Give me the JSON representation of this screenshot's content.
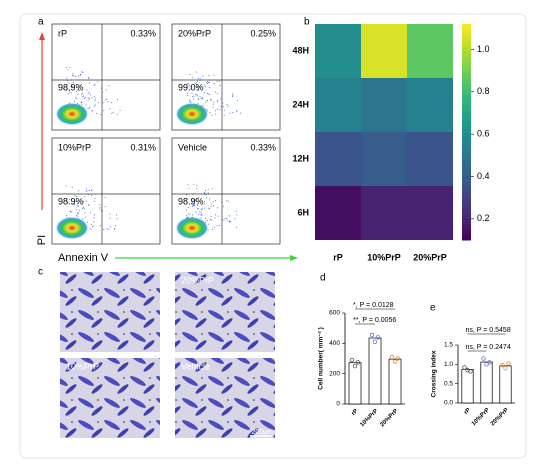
{
  "panel_labels": [
    "a",
    "b",
    "c",
    "d",
    "e"
  ],
  "flow": {
    "x_label": "Annexin V",
    "y_label": "PI",
    "plots": [
      {
        "name": "rP",
        "upper_right": "0.33%",
        "lower_left": "98.9%"
      },
      {
        "name": "20%PrP",
        "upper_right": "0.25%",
        "lower_left": "99.0%"
      },
      {
        "name": "10%PrP",
        "upper_right": "0.31%",
        "lower_left": "98.9%"
      },
      {
        "name": "Vehicle",
        "upper_right": "0.33%",
        "lower_left": "98.9%"
      }
    ]
  },
  "micro": {
    "labels": [
      "20%PrP",
      "10%PrP",
      "Vehicle"
    ],
    "scale_bar": "200μm"
  },
  "chart_data": [
    {
      "type": "heatmap",
      "rows": [
        "48H",
        "24H",
        "12H",
        "6H"
      ],
      "columns": [
        "rP",
        "10%PrP",
        "20%PrP"
      ],
      "values": [
        [
          0.6,
          1.06,
          0.86
        ],
        [
          0.55,
          0.5,
          0.55
        ],
        [
          0.36,
          0.4,
          0.36
        ],
        [
          0.14,
          0.2,
          0.2
        ]
      ],
      "zlim": [
        0.1,
        1.12
      ],
      "zticks": [
        0.2,
        0.4,
        0.6,
        0.8,
        {
          "value": 1,
          "label": "1.0"
        }
      ],
      "colormap": "viridis"
    },
    {
      "type": "bar",
      "y_label": "Cell number( mm⁻² )",
      "categories": [
        "rP",
        "10%PrP",
        "20%PrP"
      ],
      "values": [
        272,
        435,
        296
      ],
      "points": [
        [
          290,
          250,
          275
        ],
        [
          455,
          410,
          440
        ],
        [
          310,
          280,
          300
        ]
      ],
      "point_colors": [
        "#555555",
        "#6a6fd8",
        "#e08a3c"
      ],
      "ylim": [
        0,
        600
      ],
      "yticks": [
        0,
        200,
        400,
        600
      ],
      "annotations": [
        "*, P = 0.0128",
        "**, P = 0.0056"
      ]
    },
    {
      "type": "bar",
      "y_label": "Crossing index",
      "categories": [
        "rP",
        "10%PrP",
        "20%PrP"
      ],
      "values": [
        0.87,
        1.06,
        0.96
      ],
      "points": [
        [
          0.92,
          0.85,
          0.82
        ],
        [
          1.15,
          1.0,
          1.05
        ],
        [
          0.98,
          0.9,
          1.02
        ]
      ],
      "point_colors": [
        "#555555",
        "#6a6fd8",
        "#e08a3c"
      ],
      "ylim": [
        0,
        1.5
      ],
      "yticks": [
        {
          "value": 0,
          "label": "0.0"
        },
        0.5,
        {
          "value": 1,
          "label": "1.0"
        },
        1.5
      ],
      "annotations": [
        "ns, P = 0.5458",
        "ns, P = 0.2474"
      ]
    }
  ]
}
